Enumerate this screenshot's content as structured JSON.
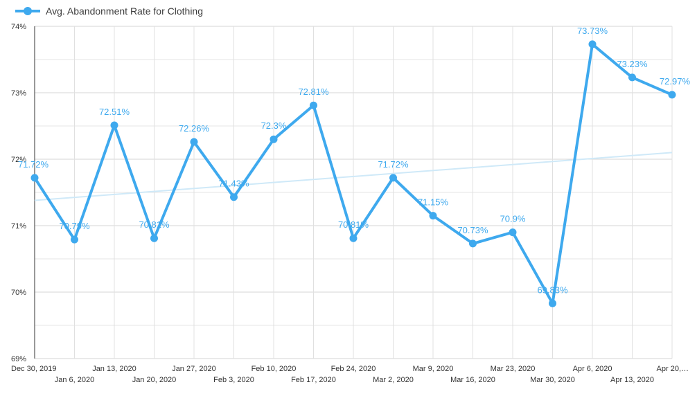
{
  "chart_data": {
    "type": "line",
    "legend": {
      "position": "top-left"
    },
    "series": [
      {
        "name": "Avg. Abandonment Rate for Clothing",
        "color": "#3ea9ee",
        "x": [
          "Dec 30, 2019",
          "Jan 6, 2020",
          "Jan 13, 2020",
          "Jan 20, 2020",
          "Jan 27, 2020",
          "Feb 3, 2020",
          "Feb 10, 2020",
          "Feb 17, 2020",
          "Feb 24, 2020",
          "Mar 2, 2020",
          "Mar 9, 2020",
          "Mar 16, 2020",
          "Mar 23, 2020",
          "Mar 30, 2020",
          "Apr 6, 2020",
          "Apr 13, 2020",
          "Apr 20,…"
        ],
        "values": [
          71.72,
          70.79,
          72.51,
          70.81,
          72.26,
          71.43,
          72.3,
          72.81,
          70.81,
          71.72,
          71.15,
          70.73,
          70.9,
          69.83,
          73.73,
          73.23,
          72.97
        ],
        "data_labels": [
          "71.72%",
          "70.79%",
          "72.51%",
          "70.81%",
          "72.26%",
          "71.43%",
          "72.3%",
          "72.81%",
          "70.81%",
          "71.72%",
          "71.15%",
          "70.73%",
          "70.9%",
          "69.83%",
          "73.73%",
          "73.23%",
          "72.97%"
        ]
      }
    ],
    "trendline": {
      "color": "#cfe9f8",
      "start": 71.38,
      "end": 72.1
    },
    "y_axis": {
      "min": 69,
      "max": 74,
      "ticks": [
        69,
        70,
        71,
        72,
        73,
        74
      ],
      "tick_labels": [
        "69%",
        "70%",
        "71%",
        "72%",
        "73%",
        "74%"
      ]
    },
    "grid": true
  }
}
